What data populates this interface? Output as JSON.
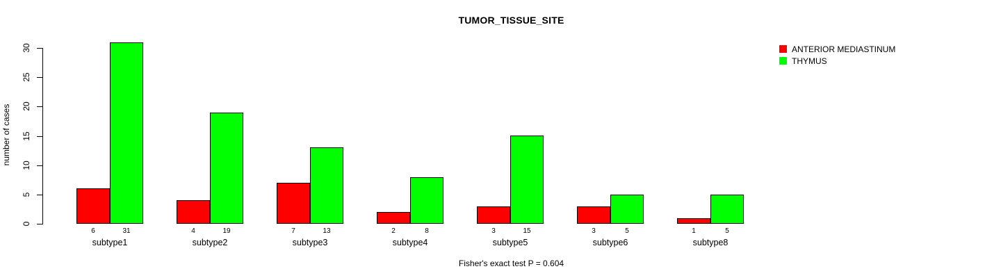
{
  "chart_data": {
    "type": "bar",
    "title": "TUMOR_TISSUE_SITE",
    "ylabel": "number of cases",
    "ylim": [
      0,
      30
    ],
    "yticks": [
      0,
      5,
      10,
      15,
      20,
      25,
      30
    ],
    "grid": false,
    "legend_position": "top-right",
    "categories": [
      "subtype1",
      "subtype2",
      "subtype3",
      "subtype4",
      "subtype5",
      "subtype6",
      "subtype8"
    ],
    "series": [
      {
        "name": "ANTERIOR MEDIASTINUM",
        "color": "#FF0000",
        "values": [
          6,
          4,
          7,
          2,
          3,
          3,
          1
        ]
      },
      {
        "name": "THYMUS",
        "color": "#00FF00",
        "values": [
          31,
          19,
          13,
          8,
          15,
          5,
          5
        ]
      }
    ],
    "bar_value_labels_shown": true
  },
  "footer": {
    "text": "Fisher's exact test P = 0.604"
  }
}
